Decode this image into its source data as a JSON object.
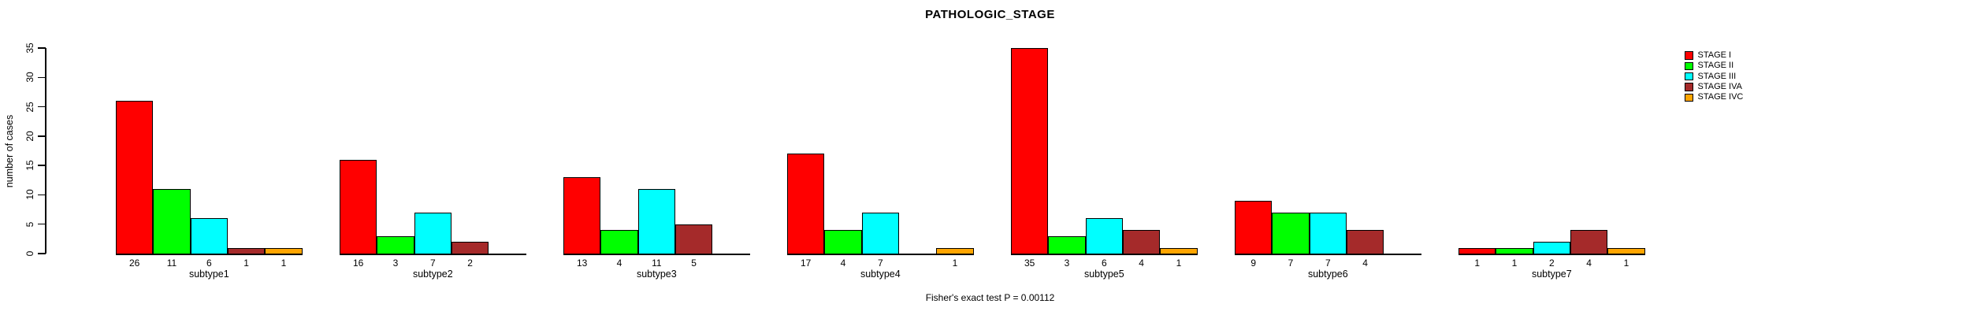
{
  "title": "PATHOLOGIC_STAGE",
  "footer": "Fisher's exact test P = 0.00112",
  "chart_data": {
    "type": "bar",
    "title": "PATHOLOGIC_STAGE",
    "ylabel": "number of cases",
    "xlabel": "",
    "categories": [
      "subtype1",
      "subtype2",
      "subtype3",
      "subtype4",
      "subtype5",
      "subtype6",
      "subtype7"
    ],
    "series": [
      {
        "name": "STAGE I",
        "color": "#FF0000",
        "values": [
          26,
          16,
          13,
          17,
          35,
          9,
          1
        ]
      },
      {
        "name": "STAGE II",
        "color": "#00FF00",
        "values": [
          11,
          3,
          4,
          4,
          3,
          7,
          1
        ]
      },
      {
        "name": "STAGE III",
        "color": "#00FFFF",
        "values": [
          6,
          7,
          11,
          7,
          6,
          7,
          2
        ]
      },
      {
        "name": "STAGE IVA",
        "color": "#A52A2A",
        "values": [
          1,
          2,
          5,
          0,
          4,
          4,
          4
        ]
      },
      {
        "name": "STAGE IVC",
        "color": "#FFA500",
        "values": [
          1,
          0,
          0,
          1,
          1,
          0,
          1
        ]
      }
    ],
    "ylim": [
      0,
      35
    ],
    "yticks": [
      0,
      5,
      10,
      15,
      20,
      25,
      30,
      35
    ],
    "grid": false,
    "legend_position": "top-right",
    "bar_value_labels": "value shown below each bar; zero-height bars drawn as flat baseline with no label",
    "annotation": "Fisher's exact test P = 0.00112"
  }
}
